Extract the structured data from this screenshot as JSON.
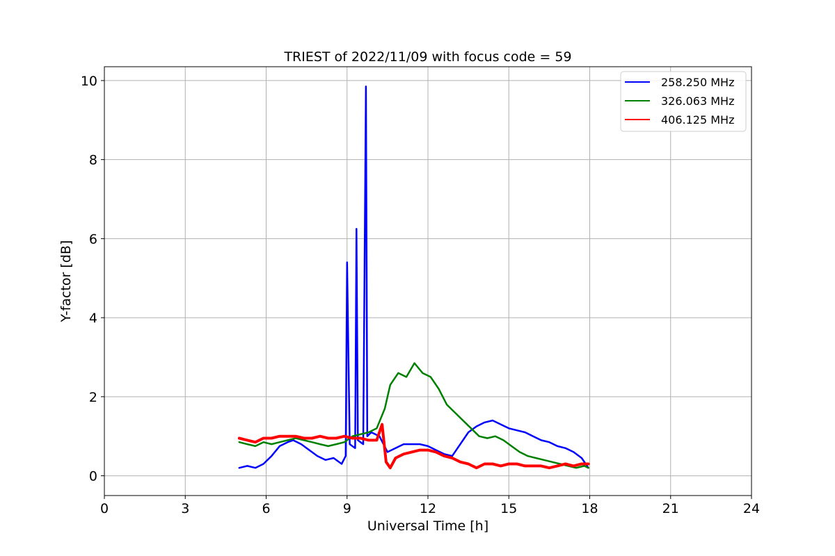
{
  "chart_data": {
    "type": "line",
    "title": "TRIEST of 2022/11/09 with focus code = 59",
    "xlabel": "Universal Time [h]",
    "ylabel": "Y-factor [dB]",
    "xlim": [
      0,
      24
    ],
    "ylim": [
      -0.5,
      10.35
    ],
    "xticks": [
      0,
      3,
      6,
      9,
      12,
      15,
      18,
      21,
      24
    ],
    "yticks": [
      0,
      2,
      4,
      6,
      8,
      10
    ],
    "grid": true,
    "legend_position": "top-right",
    "series": [
      {
        "name": "258.250 MHz",
        "color": "#0000ff",
        "x": [
          5.0,
          5.3,
          5.6,
          5.9,
          6.2,
          6.5,
          6.8,
          7.0,
          7.3,
          7.6,
          7.9,
          8.2,
          8.5,
          8.8,
          8.95,
          9.0,
          9.1,
          9.3,
          9.35,
          9.4,
          9.6,
          9.7,
          9.75,
          9.9,
          10.2,
          10.5,
          10.8,
          11.1,
          11.4,
          11.7,
          12.0,
          12.3,
          12.6,
          12.9,
          13.2,
          13.5,
          13.8,
          14.1,
          14.4,
          14.7,
          15.0,
          15.3,
          15.6,
          15.9,
          16.2,
          16.5,
          16.8,
          17.1,
          17.4,
          17.7,
          17.95
        ],
        "y": [
          0.2,
          0.25,
          0.2,
          0.3,
          0.5,
          0.75,
          0.85,
          0.9,
          0.8,
          0.65,
          0.5,
          0.4,
          0.45,
          0.3,
          0.5,
          5.4,
          0.8,
          0.7,
          6.25,
          0.9,
          0.8,
          9.85,
          1.0,
          1.1,
          1.0,
          0.6,
          0.7,
          0.8,
          0.8,
          0.8,
          0.75,
          0.65,
          0.55,
          0.5,
          0.8,
          1.1,
          1.25,
          1.35,
          1.4,
          1.3,
          1.2,
          1.15,
          1.1,
          1.0,
          0.9,
          0.85,
          0.75,
          0.7,
          0.6,
          0.45,
          0.2
        ]
      },
      {
        "name": "326.063 MHz",
        "color": "#008000",
        "x": [
          5.0,
          5.3,
          5.6,
          5.9,
          6.2,
          6.5,
          6.8,
          7.1,
          7.4,
          7.7,
          8.0,
          8.3,
          8.6,
          8.9,
          9.2,
          9.5,
          9.8,
          10.1,
          10.4,
          10.6,
          10.9,
          11.2,
          11.5,
          11.8,
          12.1,
          12.4,
          12.7,
          13.0,
          13.3,
          13.6,
          13.9,
          14.2,
          14.5,
          14.8,
          15.1,
          15.4,
          15.7,
          16.0,
          16.3,
          16.6,
          16.9,
          17.2,
          17.5,
          17.8,
          17.95
        ],
        "y": [
          0.85,
          0.8,
          0.75,
          0.85,
          0.8,
          0.85,
          0.9,
          0.95,
          0.9,
          0.85,
          0.8,
          0.75,
          0.8,
          0.85,
          1.0,
          1.05,
          1.1,
          1.2,
          1.7,
          2.3,
          2.6,
          2.5,
          2.85,
          2.6,
          2.5,
          2.2,
          1.8,
          1.6,
          1.4,
          1.2,
          1.0,
          0.95,
          1.0,
          0.9,
          0.75,
          0.6,
          0.5,
          0.45,
          0.4,
          0.35,
          0.3,
          0.25,
          0.2,
          0.25,
          0.2
        ]
      },
      {
        "name": "406.125 MHz",
        "color": "#ff0000",
        "x": [
          5.0,
          5.3,
          5.6,
          5.9,
          6.2,
          6.5,
          6.8,
          7.1,
          7.4,
          7.7,
          8.0,
          8.3,
          8.6,
          8.9,
          9.2,
          9.5,
          9.8,
          10.1,
          10.3,
          10.45,
          10.6,
          10.8,
          11.1,
          11.4,
          11.7,
          12.0,
          12.3,
          12.6,
          12.9,
          13.2,
          13.5,
          13.8,
          14.1,
          14.4,
          14.7,
          15.0,
          15.3,
          15.6,
          15.9,
          16.2,
          16.5,
          16.8,
          17.1,
          17.4,
          17.7,
          17.95
        ],
        "y": [
          0.95,
          0.9,
          0.85,
          0.95,
          0.95,
          1.0,
          1.0,
          1.0,
          0.95,
          0.95,
          1.0,
          0.95,
          0.95,
          1.0,
          0.95,
          0.95,
          0.9,
          0.9,
          1.3,
          0.35,
          0.2,
          0.45,
          0.55,
          0.6,
          0.65,
          0.65,
          0.6,
          0.5,
          0.45,
          0.35,
          0.3,
          0.2,
          0.3,
          0.3,
          0.25,
          0.3,
          0.3,
          0.25,
          0.25,
          0.25,
          0.2,
          0.25,
          0.3,
          0.25,
          0.3,
          0.3
        ]
      }
    ]
  }
}
